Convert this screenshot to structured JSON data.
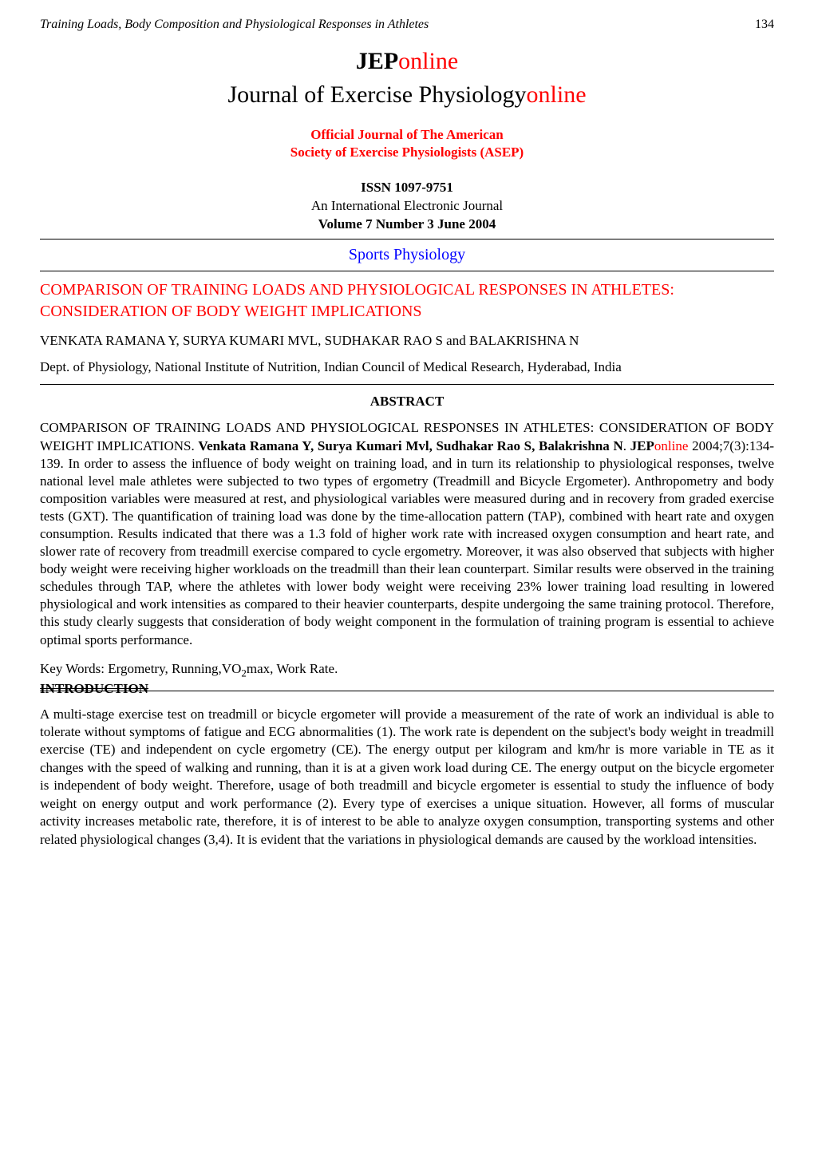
{
  "header": {
    "running_title": "Training Loads, Body Composition and Physiological Responses in Athletes",
    "page_number": "134"
  },
  "journal": {
    "abbrev_black": "JEP",
    "abbrev_red": "online",
    "full_black": "Journal of Exercise Physiology",
    "full_red": "online",
    "official_line1": "Official Journal of The American",
    "official_line2": "Society of Exercise Physiologists (ASEP)",
    "issn": "ISSN 1097-9751",
    "intl_journal": "An International Electronic Journal",
    "volume_issue": "Volume 7 Number 3 June 2004"
  },
  "section_label": "Sports Physiology",
  "article": {
    "title": "COMPARISON OF TRAINING LOADS AND PHYSIOLOGICAL RESPONSES IN ATHLETES: CONSIDERATION OF BODY WEIGHT IMPLICATIONS",
    "authors": "VENKATA RAMANA Y, SURYA KUMARI MVL, SUDHAKAR RAO S and BALAKRISHNA N",
    "affiliation": "Dept. of Physiology, National Institute of Nutrition, Indian Council of Medical Research, Hyderabad, India"
  },
  "abstract": {
    "heading": "ABSTRACT",
    "title_part": "COMPARISON OF TRAINING LOADS AND PHYSIOLOGICAL RESPONSES IN ATHLETES: CONSIDERATION OF BODY WEIGHT IMPLICATIONS.",
    "authors_bold": "Venkata Ramana Y, Surya Kumari Mvl, Sudhakar Rao S, Balakrishna N",
    "jep_black": "JEP",
    "jep_red": "online",
    "citation": " 2004;7(3):134-139.  ",
    "body": "In order to assess the influence of body weight on training load, and in turn its relationship to physiological responses, twelve national level male athletes were subjected to two types of ergometry (Treadmill and Bicycle Ergometer). Anthropometry and body composition variables were measured at rest, and physiological variables were measured during and in recovery from graded exercise tests (GXT). The quantification of training load was done by the time-allocation pattern (TAP), combined with heart rate and oxygen consumption. Results indicated that there was a 1.3 fold of higher work rate with increased oxygen consumption and heart rate, and slower rate of recovery from treadmill exercise compared to cycle ergometry.  Moreover, it was also observed that subjects with higher body weight were receiving higher workloads on the treadmill than their lean counterpart. Similar results were observed in the training schedules through TAP, where the athletes with lower body weight were receiving 23% lower training load resulting in lowered physiological and work intensities as compared to their heavier counterparts, despite undergoing the same training protocol. Therefore, this study clearly suggests that consideration of body weight component in the formulation of training program is essential to achieve optimal sports performance."
  },
  "keywords": {
    "label": "Key Words: ",
    "pre": "Ergometry, Running,VO",
    "sub": "2",
    "post": "max, Work Rate."
  },
  "introduction": {
    "heading": "INTRODUCTION",
    "body": "A multi-stage exercise test on treadmill or bicycle ergometer will provide a measurement of the rate of work an individual is able to tolerate without symptoms of fatigue and ECG abnormalities (1). The work rate is dependent on the subject's body weight in treadmill exercise (TE) and independent on cycle ergometry (CE). The energy output per kilogram and km/hr is more variable in TE as it changes with the speed of walking and running, than it is at a given work load during CE. The energy output on the bicycle ergometer is independent of body weight. Therefore, usage of both treadmill and bicycle ergometer is essential to study the influence of body weight on energy output and work performance (2). Every type of exercises a unique situation. However, all forms of muscular activity increases metabolic rate, therefore, it is of interest to be able to analyze oxygen consumption, transporting systems and other related physiological changes (3,4). It is evident that the variations in physiological demands are caused by the workload intensities."
  },
  "colors": {
    "text": "#000000",
    "accent_red": "#ff0000",
    "accent_blue": "#0000ff",
    "background": "#ffffff",
    "rule": "#000000"
  },
  "typography": {
    "font_family": "Times New Roman",
    "body_fontsize_pt": 13,
    "journal_title_fontsize_pt": 22,
    "article_title_fontsize_pt": 15,
    "section_label_fontsize_pt": 15
  }
}
